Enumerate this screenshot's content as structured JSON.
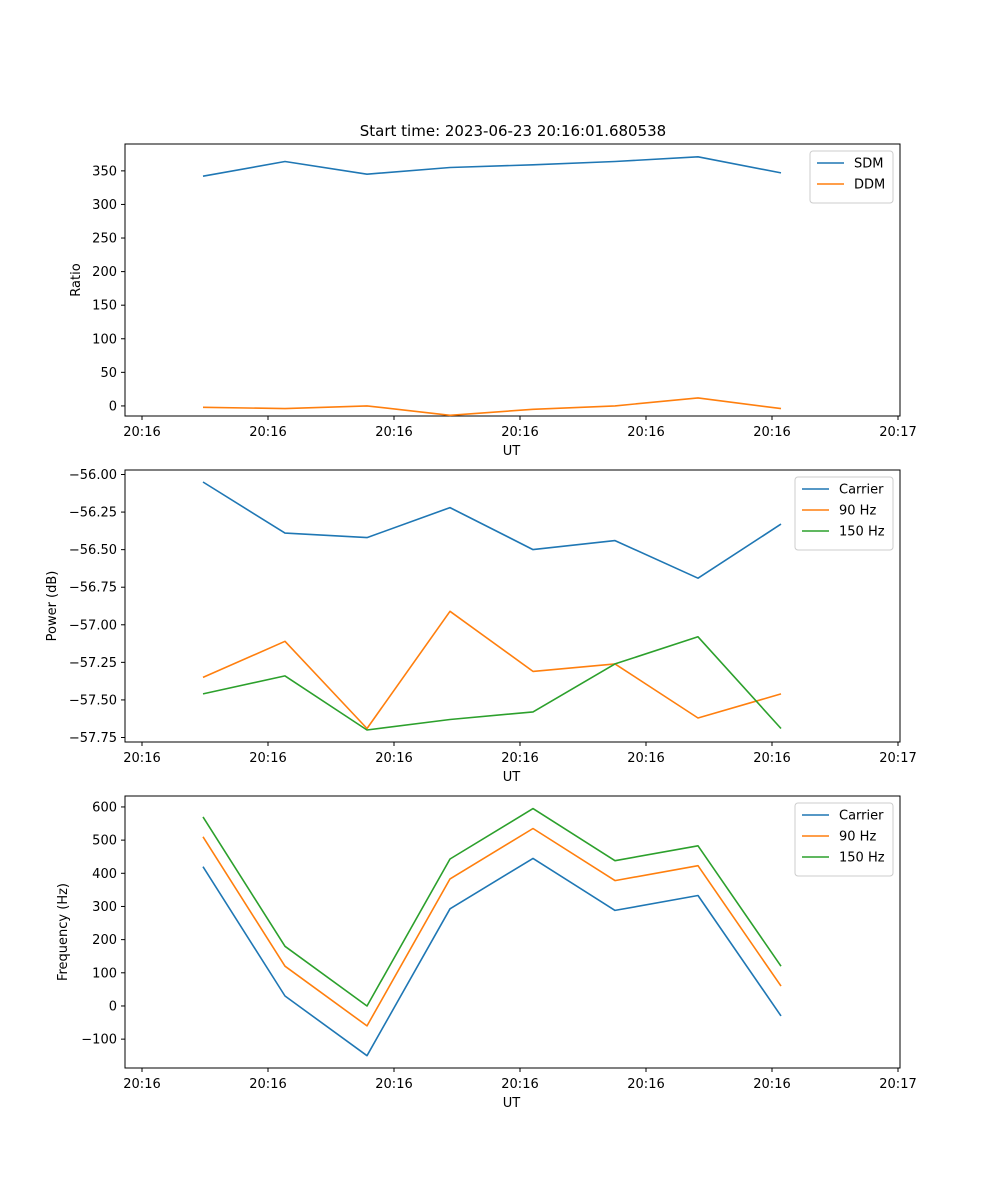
{
  "figure": {
    "title": "Start time: 2023-06-23 20:16:01.680538"
  },
  "chart_data": [
    {
      "type": "line",
      "xlabel": "UT",
      "ylabel": "Ratio",
      "xtick_labels": [
        "20:16",
        "20:16",
        "20:16",
        "20:16",
        "20:16",
        "20:16",
        "20:16",
        "20:17"
      ],
      "yticks": [
        0,
        50,
        100,
        150,
        200,
        250,
        300,
        350
      ],
      "ylim": [
        -15,
        390
      ],
      "legend": "top-right",
      "series": [
        {
          "name": "SDM",
          "color": "#1f77b4",
          "values": [
            342,
            364,
            345,
            355,
            359,
            364,
            371,
            347
          ]
        },
        {
          "name": "DDM",
          "color": "#ff7f0e",
          "values": [
            -2,
            -4,
            0,
            -14,
            -5,
            0,
            12,
            -4
          ]
        }
      ]
    },
    {
      "type": "line",
      "xlabel": "UT",
      "ylabel": "Power (dB)",
      "xtick_labels": [
        "20:16",
        "20:16",
        "20:16",
        "20:16",
        "20:16",
        "20:16",
        "20:16",
        "20:17"
      ],
      "yticks": [
        -56.0,
        -56.25,
        -56.5,
        -56.75,
        -57.0,
        -57.25,
        -57.5,
        -57.75
      ],
      "ytick_labels": [
        "−56.00",
        "−56.25",
        "−56.50",
        "−56.75",
        "−57.00",
        "−57.25",
        "−57.50",
        "−57.75"
      ],
      "ylim": [
        -57.78,
        -55.97
      ],
      "legend": "top-right",
      "series": [
        {
          "name": "Carrier",
          "color": "#1f77b4",
          "values": [
            -56.05,
            -56.39,
            -56.42,
            -56.22,
            -56.5,
            -56.44,
            -56.69,
            -56.33
          ]
        },
        {
          "name": "90 Hz",
          "color": "#ff7f0e",
          "values": [
            -57.35,
            -57.11,
            -57.69,
            -56.91,
            -57.31,
            -57.26,
            -57.62,
            -57.46
          ]
        },
        {
          "name": "150 Hz",
          "color": "#2ca02c",
          "values": [
            -57.46,
            -57.34,
            -57.7,
            -57.63,
            -57.58,
            -57.26,
            -57.08,
            -57.69
          ]
        }
      ]
    },
    {
      "type": "line",
      "xlabel": "UT",
      "ylabel": "Frequency (Hz)",
      "xtick_labels": [
        "20:16",
        "20:16",
        "20:16",
        "20:16",
        "20:16",
        "20:16",
        "20:16",
        "20:17"
      ],
      "yticks": [
        -100,
        0,
        100,
        200,
        300,
        400,
        500,
        600
      ],
      "ytick_labels": [
        "−100",
        "0",
        "100",
        "200",
        "300",
        "400",
        "500",
        "600"
      ],
      "ylim": [
        -187,
        633
      ],
      "legend": "top-right",
      "series": [
        {
          "name": "Carrier",
          "color": "#1f77b4",
          "values": [
            420,
            30,
            -150,
            293,
            445,
            288,
            333,
            -30
          ]
        },
        {
          "name": "90 Hz",
          "color": "#ff7f0e",
          "values": [
            510,
            120,
            -60,
            383,
            535,
            378,
            423,
            60
          ]
        },
        {
          "name": "150 Hz",
          "color": "#2ca02c",
          "values": [
            570,
            180,
            0,
            443,
            595,
            438,
            483,
            120
          ]
        }
      ]
    }
  ]
}
